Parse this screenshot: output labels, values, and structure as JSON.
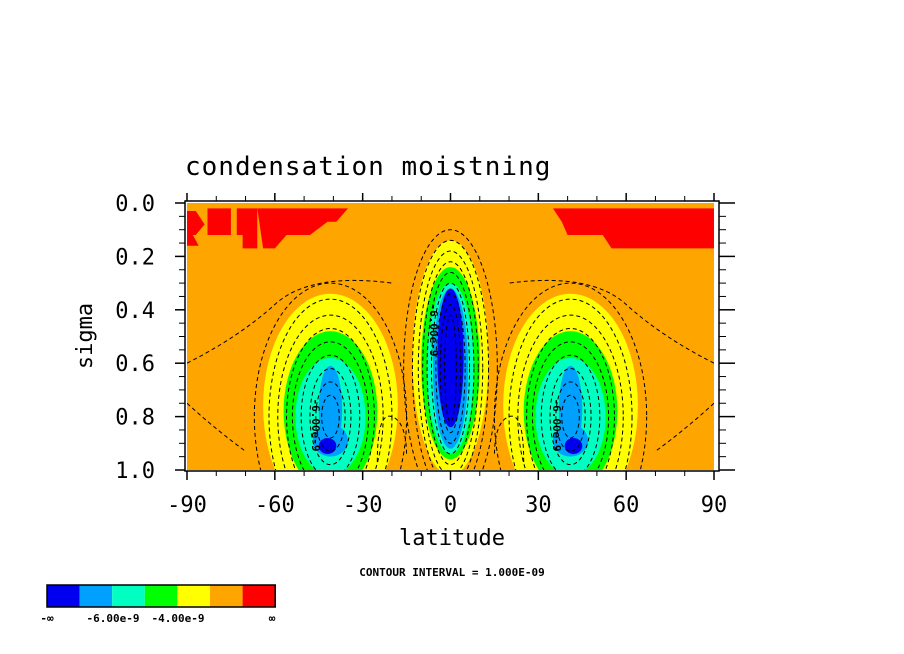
{
  "chart_data": {
    "type": "contour",
    "title": "condensation moistning",
    "xlabel": "latitude",
    "ylabel": "sigma",
    "xlim": [
      -90,
      90
    ],
    "ylim": [
      0.0,
      1.0
    ],
    "y_inverted": true,
    "x_ticks": [
      "-90",
      "-60",
      "-30",
      "0",
      "30",
      "60",
      "90"
    ],
    "x_tick_values": [
      -90,
      -60,
      -30,
      0,
      30,
      60,
      90
    ],
    "y_ticks": [
      "0.0",
      "0.2",
      "0.4",
      "0.6",
      "0.8",
      "1.0"
    ],
    "y_tick_values": [
      0.0,
      0.2,
      0.4,
      0.6,
      0.8,
      1.0
    ],
    "contour_interval_text": "CONTOUR INTERVAL = 1.000E-09",
    "contour_labels": [
      "-6.00e-9",
      "-6.00e-9",
      "-6.00e-9"
    ],
    "colorbar": {
      "colors": [
        "#0000ee",
        "#00a0ff",
        "#00ffc0",
        "#00ff00",
        "#ffff00",
        "#ffa500",
        "#ff0000"
      ],
      "labels": [
        "-∞",
        "-6.00e-9",
        "-4.00e-9",
        "∞"
      ]
    },
    "features": [
      {
        "kind": "minimum",
        "lat": -42,
        "sigma": 0.9
      },
      {
        "kind": "minimum",
        "lat": 0,
        "sigma": 0.55
      },
      {
        "kind": "minimum",
        "lat": 42,
        "sigma": 0.9
      }
    ]
  }
}
